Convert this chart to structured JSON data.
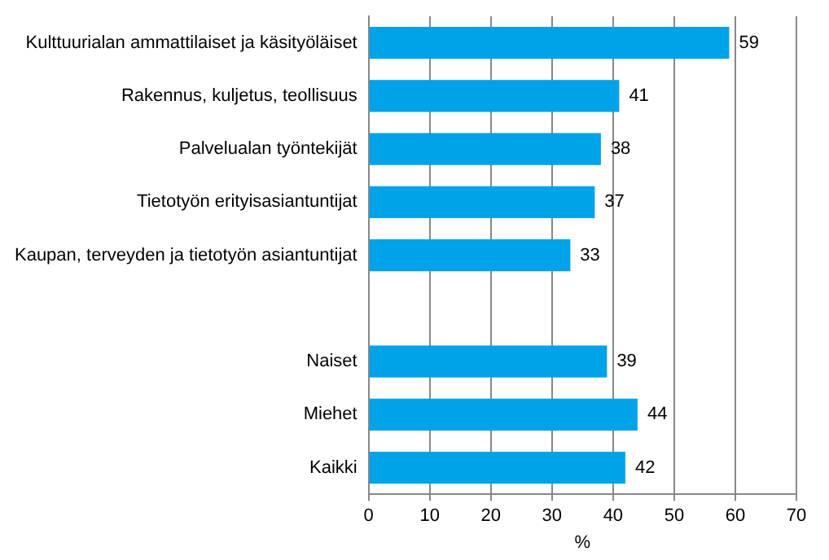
{
  "chart_data": {
    "type": "bar",
    "orientation": "horizontal",
    "xlabel": "%",
    "categories": [
      "Kulttuurialan ammattilaiset ja käsityöläiset",
      "Rakennus, kuljetus, teollisuus",
      "Palvelualan työntekijät",
      "Tietotyön erityisasiantuntijat",
      "Kaupan, terveyden ja tietotyön asiantuntijat",
      null,
      "Naiset",
      "Miehet",
      "Kaikki"
    ],
    "values": [
      59,
      41,
      38,
      37,
      33,
      null,
      39,
      44,
      42
    ],
    "color": "#00a2e8",
    "xlim": [
      0,
      70
    ],
    "xticks": [
      0,
      10,
      20,
      30,
      40,
      50,
      60,
      70
    ],
    "grid": "x",
    "data_labels": true,
    "legend": false
  }
}
